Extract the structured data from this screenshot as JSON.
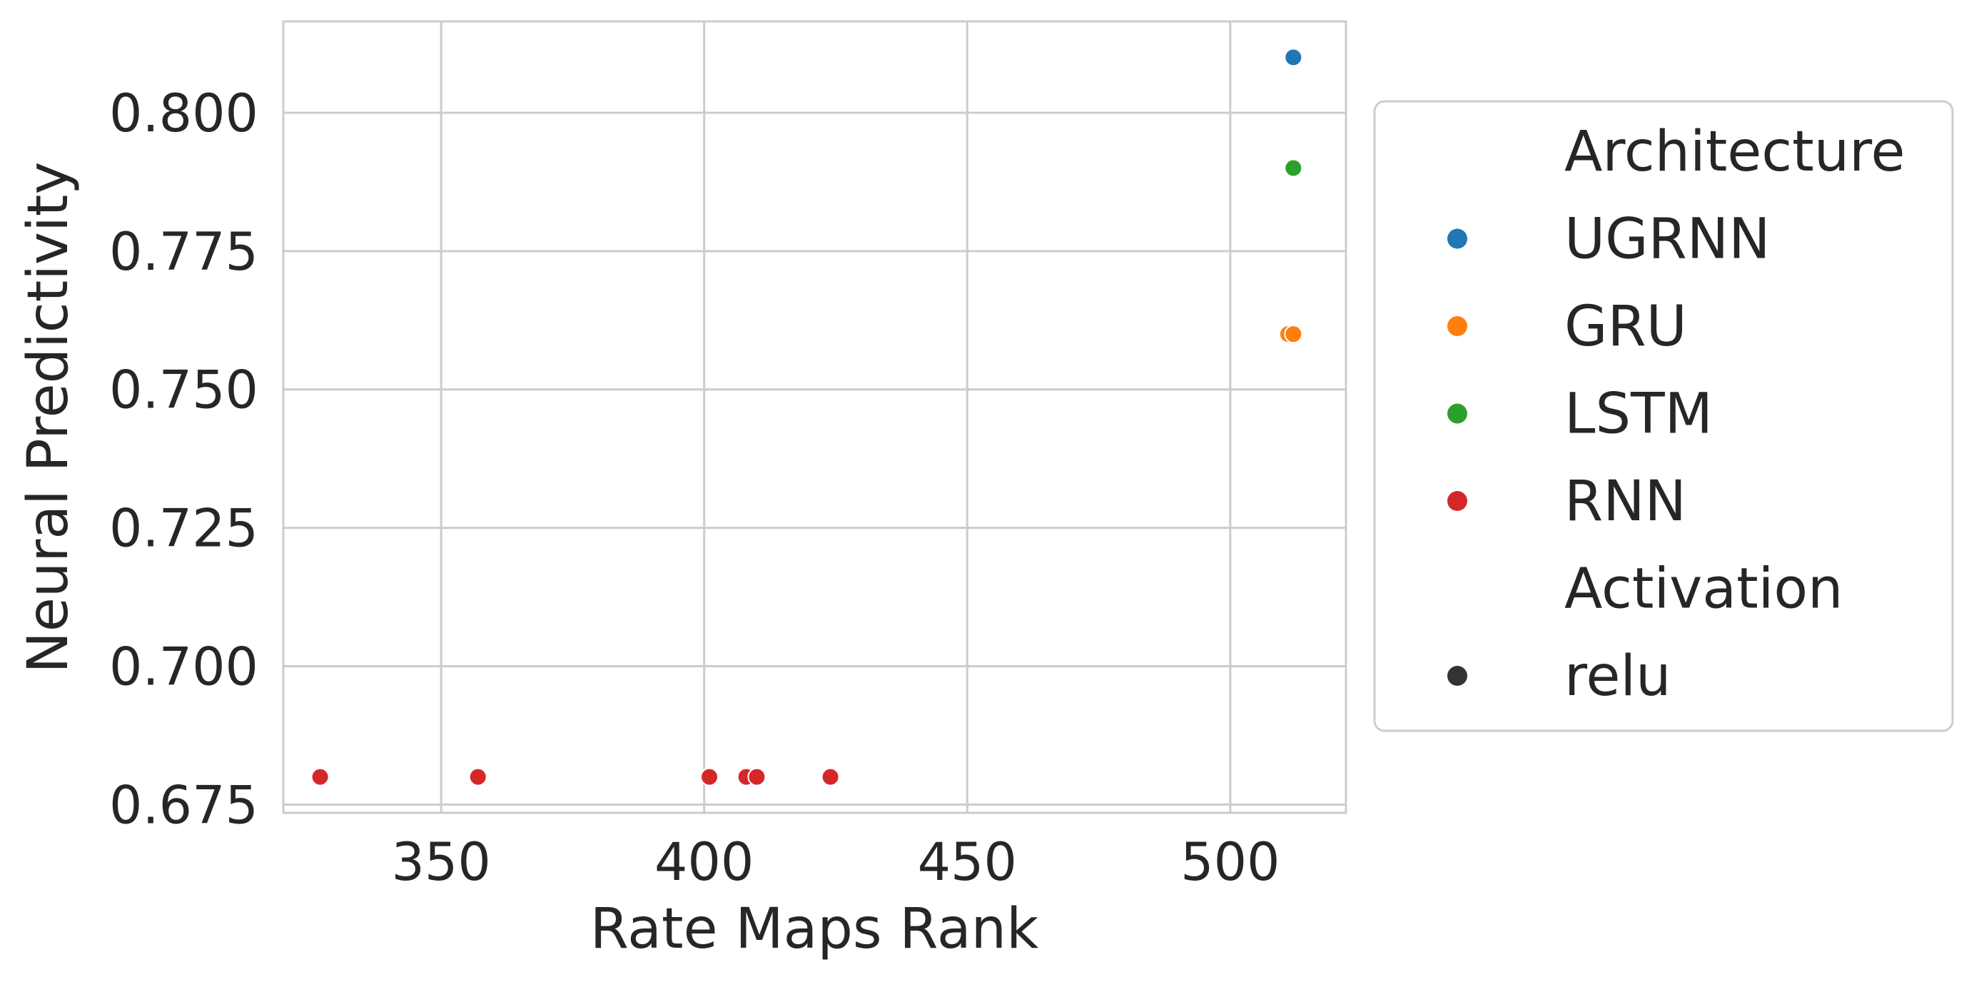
{
  "chart_data": {
    "type": "scatter",
    "xlabel": "Rate Maps Rank",
    "ylabel": "Neural Predictivity",
    "xlim": [
      320,
      522
    ],
    "ylim": [
      0.6735,
      0.8165
    ],
    "xticks": [
      350,
      400,
      450,
      500
    ],
    "yticks": [
      0.675,
      0.7,
      0.725,
      0.75,
      0.775,
      0.8
    ],
    "ytick_labels": [
      "0.675",
      "0.700",
      "0.725",
      "0.750",
      "0.775",
      "0.800"
    ],
    "grid": true,
    "legend_placement": "outside right",
    "legend": {
      "hue_title": "Architecture",
      "hue_entries": [
        {
          "name": "UGRNN",
          "color": "#1f77b4"
        },
        {
          "name": "GRU",
          "color": "#ff7f0e"
        },
        {
          "name": "LSTM",
          "color": "#2ca02c"
        },
        {
          "name": "RNN",
          "color": "#d62728"
        }
      ],
      "style_title": "Activation",
      "style_entries": [
        {
          "name": "relu",
          "color": "#333333",
          "marker": "circle"
        }
      ]
    },
    "series": [
      {
        "name": "UGRNN",
        "color": "#1f77b4",
        "points": [
          {
            "x": 512,
            "y": 0.81
          }
        ]
      },
      {
        "name": "GRU",
        "color": "#ff7f0e",
        "points": [
          {
            "x": 511,
            "y": 0.76
          },
          {
            "x": 512,
            "y": 0.76
          }
        ]
      },
      {
        "name": "LSTM",
        "color": "#2ca02c",
        "points": [
          {
            "x": 512,
            "y": 0.79
          }
        ]
      },
      {
        "name": "RNN",
        "color": "#d62728",
        "points": [
          {
            "x": 327,
            "y": 0.68
          },
          {
            "x": 357,
            "y": 0.68
          },
          {
            "x": 401,
            "y": 0.68
          },
          {
            "x": 408,
            "y": 0.68
          },
          {
            "x": 410,
            "y": 0.68
          },
          {
            "x": 424,
            "y": 0.68
          }
        ]
      }
    ],
    "colors": {
      "grid": "#cccccc",
      "text": "#262626",
      "marker_edge": "#ffffff"
    }
  }
}
